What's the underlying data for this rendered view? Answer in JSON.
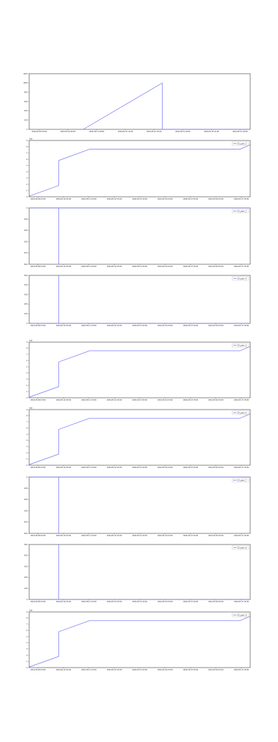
{
  "colors": {
    "line": "#6f6ff6",
    "axis": "#333333",
    "tick": "#555555",
    "background": "#ffffff"
  },
  "chart_data": [
    {
      "type": "line",
      "title": "",
      "xlabel": "",
      "ylabel": "",
      "grid": false,
      "legend": null,
      "offset_text": "",
      "x_ticks": [
        "2024-05-09 03:00",
        "2024-05-10 06:00",
        "2024-05-11 09:00",
        "2024-05-12 12:00",
        "2024-05-13 15:00",
        "2024-05-14 18:00",
        "2024-05-15 21:00",
        "2024-05-17 00:00"
      ],
      "x_range": [
        0,
        8.8
      ],
      "ylim": [
        0,
        1200
      ],
      "y_ticks": [
        "0",
        "200",
        "400",
        "600",
        "800",
        "1000",
        "1200"
      ],
      "series": [
        {
          "values": [
            [
              2.15,
              0
            ],
            [
              5.3,
              1000
            ],
            [
              5.3,
              0
            ],
            [
              8.8,
              0
            ]
          ]
        }
      ]
    },
    {
      "type": "line",
      "title": "",
      "xlabel": "",
      "ylabel": "",
      "grid": false,
      "legend": {
        "position": "top-right"
      },
      "offset_text": "1e6",
      "x_ticks": [
        "2024-05-09 03:00",
        "2024-05-10 03:00",
        "2024-05-11 03:00",
        "2024-05-12 03:00",
        "2024-05-13 03:00",
        "2024-05-14 03:00",
        "2024-05-15 03:00",
        "2024-05-16 03:00",
        "2024-05-17 03:00"
      ],
      "x_range": [
        0,
        8.6
      ],
      "ylim": [
        0,
        9
      ],
      "y_ticks": [
        "0",
        "1",
        "2",
        "3",
        "4",
        "5",
        "6",
        "7",
        "8",
        "9"
      ],
      "series": [
        {
          "name": "CO_ppm_2",
          "values": [
            [
              0,
              0.1
            ],
            [
              1.15,
              1.8
            ],
            [
              1.15,
              5.8
            ],
            [
              2.35,
              7.6
            ],
            [
              8.2,
              7.6
            ],
            [
              8.6,
              8.3
            ]
          ]
        }
      ]
    },
    {
      "type": "line",
      "title": "",
      "xlabel": "",
      "ylabel": "",
      "grid": false,
      "legend": {
        "position": "top-right"
      },
      "offset_text": "",
      "x_ticks": [
        "2024-05-09 03:00",
        "2024-05-10 03:00",
        "2024-05-11 03:00",
        "2024-05-12 03:00",
        "2024-05-13 03:00",
        "2024-05-14 03:00",
        "2024-05-15 03:00",
        "2024-05-16 03:00",
        "2024-05-17 03:00"
      ],
      "x_range": [
        0,
        8.6
      ],
      "ylim": [
        -500,
        0
      ],
      "y_ticks": [
        "-500",
        "-400",
        "-300",
        "-200",
        "-100",
        "0"
      ],
      "series": [
        {
          "name": "CO_ppm_3",
          "values": [
            [
              0,
              0
            ],
            [
              1.15,
              0
            ],
            [
              1.15,
              -500
            ],
            [
              1.15,
              0
            ],
            [
              8.6,
              0
            ]
          ]
        }
      ]
    },
    {
      "type": "line",
      "title": "",
      "xlabel": "",
      "ylabel": "",
      "grid": false,
      "legend": {
        "position": "top-right"
      },
      "offset_text": "",
      "x_ticks": [
        "2024-05-09 03:00",
        "2024-05-10 03:00",
        "2024-05-11 03:00",
        "2024-05-12 03:00",
        "2024-05-13 03:00",
        "2024-05-14 03:00",
        "2024-05-15 03:00",
        "2024-05-16 03:00",
        "2024-05-17 03:00"
      ],
      "x_range": [
        0,
        8.6
      ],
      "ylim": [
        0,
        500
      ],
      "y_ticks": [
        "0",
        "100",
        "200",
        "300",
        "400",
        "500"
      ],
      "series": [
        {
          "name": "CO_ppm_4",
          "values": [
            [
              0,
              0
            ],
            [
              1.15,
              0
            ],
            [
              1.15,
              500
            ],
            [
              1.15,
              0
            ],
            [
              8.6,
              0
            ]
          ]
        }
      ]
    },
    {
      "type": "line",
      "title": "",
      "xlabel": "",
      "ylabel": "",
      "grid": false,
      "legend": {
        "position": "top-right"
      },
      "offset_text": "1e6",
      "x_ticks": [
        "2024-05-09 03:00",
        "2024-05-10 03:00",
        "2024-05-11 03:00",
        "2024-05-12 03:00",
        "2024-05-13 03:00",
        "2024-05-14 03:00",
        "2024-05-15 03:00",
        "2024-05-16 03:00",
        "2024-05-17 03:00"
      ],
      "x_range": [
        0,
        8.6
      ],
      "ylim": [
        0,
        9
      ],
      "y_ticks": [
        "0",
        "1",
        "2",
        "3",
        "4",
        "5",
        "6",
        "7",
        "8",
        "9"
      ],
      "series": [
        {
          "name": "CO_ppm_5",
          "values": [
            [
              0,
              0.1
            ],
            [
              1.15,
              1.8
            ],
            [
              1.15,
              5.8
            ],
            [
              2.35,
              7.6
            ],
            [
              8.2,
              7.6
            ],
            [
              8.6,
              8.3
            ]
          ]
        }
      ]
    },
    {
      "type": "line",
      "title": "",
      "xlabel": "",
      "ylabel": "",
      "grid": false,
      "legend": {
        "position": "top-right"
      },
      "offset_text": "1e6",
      "x_ticks": [
        "2024-05-09 03:00",
        "2024-05-10 03:00",
        "2024-05-11 03:00",
        "2024-05-12 03:00",
        "2024-05-13 03:00",
        "2024-05-14 03:00",
        "2024-05-15 03:00",
        "2024-05-16 03:00",
        "2024-05-17 03:00"
      ],
      "x_range": [
        0,
        8.6
      ],
      "ylim": [
        0,
        9
      ],
      "y_ticks": [
        "0",
        "1",
        "2",
        "3",
        "4",
        "5",
        "6",
        "7",
        "8",
        "9"
      ],
      "series": [
        {
          "name": "CO_ppm_6",
          "values": [
            [
              0,
              0.1
            ],
            [
              1.15,
              1.8
            ],
            [
              1.15,
              5.8
            ],
            [
              2.35,
              7.6
            ],
            [
              8.2,
              7.6
            ],
            [
              8.6,
              8.3
            ]
          ]
        }
      ]
    },
    {
      "type": "line",
      "title": "",
      "xlabel": "",
      "ylabel": "",
      "grid": false,
      "legend": {
        "position": "top-right"
      },
      "offset_text": "",
      "x_ticks": [
        "2024-05-09 03:00",
        "2024-05-10 03:00",
        "2024-05-11 03:00",
        "2024-05-12 03:00",
        "2024-05-13 03:00",
        "2024-05-14 03:00",
        "2024-05-15 03:00",
        "2024-05-16 03:00",
        "2024-05-17 03:00"
      ],
      "x_range": [
        0,
        8.6
      ],
      "ylim": [
        -500,
        0
      ],
      "y_ticks": [
        "-500",
        "-400",
        "-300",
        "-200",
        "-100",
        "0"
      ],
      "series": [
        {
          "name": "CO_ppm_7",
          "values": [
            [
              0,
              0
            ],
            [
              1.15,
              0
            ],
            [
              1.15,
              -500
            ],
            [
              1.15,
              0
            ],
            [
              8.6,
              0
            ]
          ]
        }
      ]
    },
    {
      "type": "line",
      "title": "",
      "xlabel": "",
      "ylabel": "",
      "grid": false,
      "legend": {
        "position": "top-right"
      },
      "offset_text": "",
      "x_ticks": [
        "2024-05-09 03:00",
        "2024-05-10 03:00",
        "2024-05-11 03:00",
        "2024-05-12 03:00",
        "2024-05-13 03:00",
        "2024-05-14 03:00",
        "2024-05-15 03:00",
        "2024-05-16 03:00",
        "2024-05-17 03:00"
      ],
      "x_range": [
        0,
        8.6
      ],
      "ylim": [
        0,
        500
      ],
      "y_ticks": [
        "0",
        "100",
        "200",
        "300",
        "400",
        "500"
      ],
      "series": [
        {
          "name": "CO_ppm_8",
          "values": [
            [
              0,
              0
            ],
            [
              1.15,
              0
            ],
            [
              1.15,
              500
            ],
            [
              1.15,
              0
            ],
            [
              8.6,
              0
            ]
          ]
        }
      ]
    },
    {
      "type": "line",
      "title": "",
      "xlabel": "",
      "ylabel": "",
      "grid": false,
      "legend": {
        "position": "top-right"
      },
      "offset_text": "1e6",
      "x_ticks": [
        "2024-05-09 03:00",
        "2024-05-10 03:00",
        "2024-05-11 03:00",
        "2024-05-12 03:00",
        "2024-05-13 03:00",
        "2024-05-14 03:00",
        "2024-05-15 03:00",
        "2024-05-16 03:00",
        "2024-05-17 03:00"
      ],
      "x_range": [
        0,
        8.6
      ],
      "ylim": [
        0,
        9
      ],
      "y_ticks": [
        "0",
        "1",
        "2",
        "3",
        "4",
        "5",
        "6",
        "7",
        "8",
        "9"
      ],
      "series": [
        {
          "name": "CO_ppm_9",
          "values": [
            [
              0,
              0.1
            ],
            [
              1.15,
              1.8
            ],
            [
              1.15,
              5.8
            ],
            [
              2.35,
              7.6
            ],
            [
              8.2,
              7.6
            ],
            [
              8.6,
              8.3
            ]
          ]
        }
      ]
    }
  ]
}
